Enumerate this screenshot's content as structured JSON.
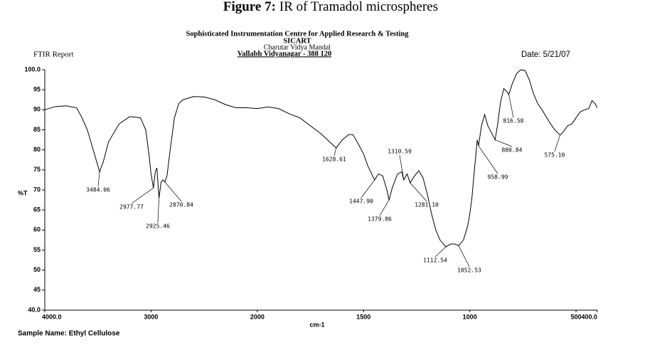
{
  "chart_data": {
    "type": "line",
    "figure_label": "Figure 7:",
    "title": "IR of Tramadol microspheres",
    "header": [
      "Sophisticated Instrumentation Centre for Applied Research & Testing",
      "SICART",
      "Charutar Vidya Mandal",
      "Vallabh Vidyanagar - 388 120"
    ],
    "report_label": "FTIR Report",
    "date": "Date: 5/21/07",
    "xlabel": "cm-1",
    "ylabel": "%T",
    "sample": "Sample Name: Ethyl Cellulose",
    "color": "#000000",
    "xlim": [
      4000,
      400
    ],
    "x_scale_break": 2000,
    "ylim": [
      40,
      100
    ],
    "xticks": [
      {
        "value": 4000,
        "label": "4000.0"
      },
      3000,
      2000,
      1500,
      1000,
      500,
      {
        "value": 400,
        "label": "400.0"
      }
    ],
    "yticks": [
      {
        "value": 40,
        "label": "40.0"
      },
      45,
      50,
      55,
      60,
      65,
      70,
      75,
      80,
      85,
      90,
      95,
      {
        "value": 100,
        "label": "100.0"
      }
    ],
    "x": [
      4000,
      3900,
      3800,
      3700,
      3650,
      3600,
      3550,
      3500,
      3484.06,
      3450,
      3400,
      3300,
      3200,
      3100,
      3050,
      3020,
      3000,
      2977.77,
      2960,
      2945,
      2925.46,
      2905,
      2890,
      2870.84,
      2850,
      2820,
      2780,
      2740,
      2700,
      2600,
      2500,
      2400,
      2300,
      2200,
      2100,
      2000,
      1950,
      1900,
      1850,
      1800,
      1750,
      1700,
      1660,
      1628.61,
      1600,
      1570,
      1550,
      1530,
      1500,
      1480,
      1447.9,
      1430,
      1410,
      1390,
      1379.86,
      1365,
      1340,
      1320,
      1310.59,
      1295,
      1281.1,
      1260,
      1240,
      1220,
      1200,
      1180,
      1160,
      1140,
      1112.54,
      1090,
      1070,
      1052.53,
      1030,
      1010,
      1000,
      990,
      980,
      965,
      958.99,
      945,
      930,
      915,
      900,
      880.84,
      870,
      855,
      840,
      825,
      816.58,
      800,
      780,
      760,
      740,
      720,
      700,
      680,
      660,
      640,
      620,
      600,
      575.1,
      560,
      540,
      520,
      500,
      480,
      460,
      440,
      425,
      410,
      400
    ],
    "values": [
      90,
      90.8,
      91,
      90.5,
      88,
      85,
      80.5,
      76,
      74.5,
      77,
      82,
      86.5,
      88.3,
      88,
      85,
      79,
      74,
      70.5,
      74.5,
      75.5,
      68,
      72,
      72.5,
      72,
      73.5,
      80,
      88,
      91.5,
      92.5,
      93.3,
      93.2,
      92.5,
      91.3,
      90.5,
      90.5,
      90.3,
      90.7,
      90.3,
      89,
      88,
      86,
      84,
      82,
      80.5,
      82.5,
      83.8,
      83.8,
      82,
      79,
      76,
      72.5,
      74,
      73.5,
      70,
      67.5,
      70.5,
      74,
      74.5,
      72.5,
      74,
      71.8,
      73.5,
      74.8,
      73,
      69,
      64,
      60,
      57.5,
      55.8,
      56.5,
      56.5,
      56.1,
      57.5,
      61,
      64,
      68,
      74,
      82.5,
      81,
      86,
      88.8,
      86,
      84.5,
      82.5,
      86,
      92,
      95.3,
      94.5,
      93.8,
      96.5,
      99,
      100,
      99.8,
      97.5,
      94,
      91.5,
      90,
      88.2,
      86.5,
      85,
      83.7,
      84.5,
      86,
      86.5,
      88,
      89.5,
      90,
      90.3,
      92.3,
      91.5,
      90.5
    ],
    "annotations": [
      {
        "x": 3484.06,
        "label": "3484.06"
      },
      {
        "x": 2977.77,
        "label": "2977.77"
      },
      {
        "x": 2925.46,
        "label": "2925.46"
      },
      {
        "x": 2870.84,
        "label": "2870.84"
      },
      {
        "x": 1628.61,
        "label": "1628.61"
      },
      {
        "x": 1447.9,
        "label": "1447.90"
      },
      {
        "x": 1379.86,
        "label": "1379.86"
      },
      {
        "x": 1310.59,
        "label": "1310.59"
      },
      {
        "x": 1281.1,
        "label": "1281.10"
      },
      {
        "x": 1112.54,
        "label": "1112.54"
      },
      {
        "x": 1052.53,
        "label": "1052.53"
      },
      {
        "x": 958.99,
        "label": "958.99"
      },
      {
        "x": 880.84,
        "label": "880.84"
      },
      {
        "x": 816.58,
        "label": "816.58"
      },
      {
        "x": 575.1,
        "label": "575.10"
      }
    ]
  }
}
